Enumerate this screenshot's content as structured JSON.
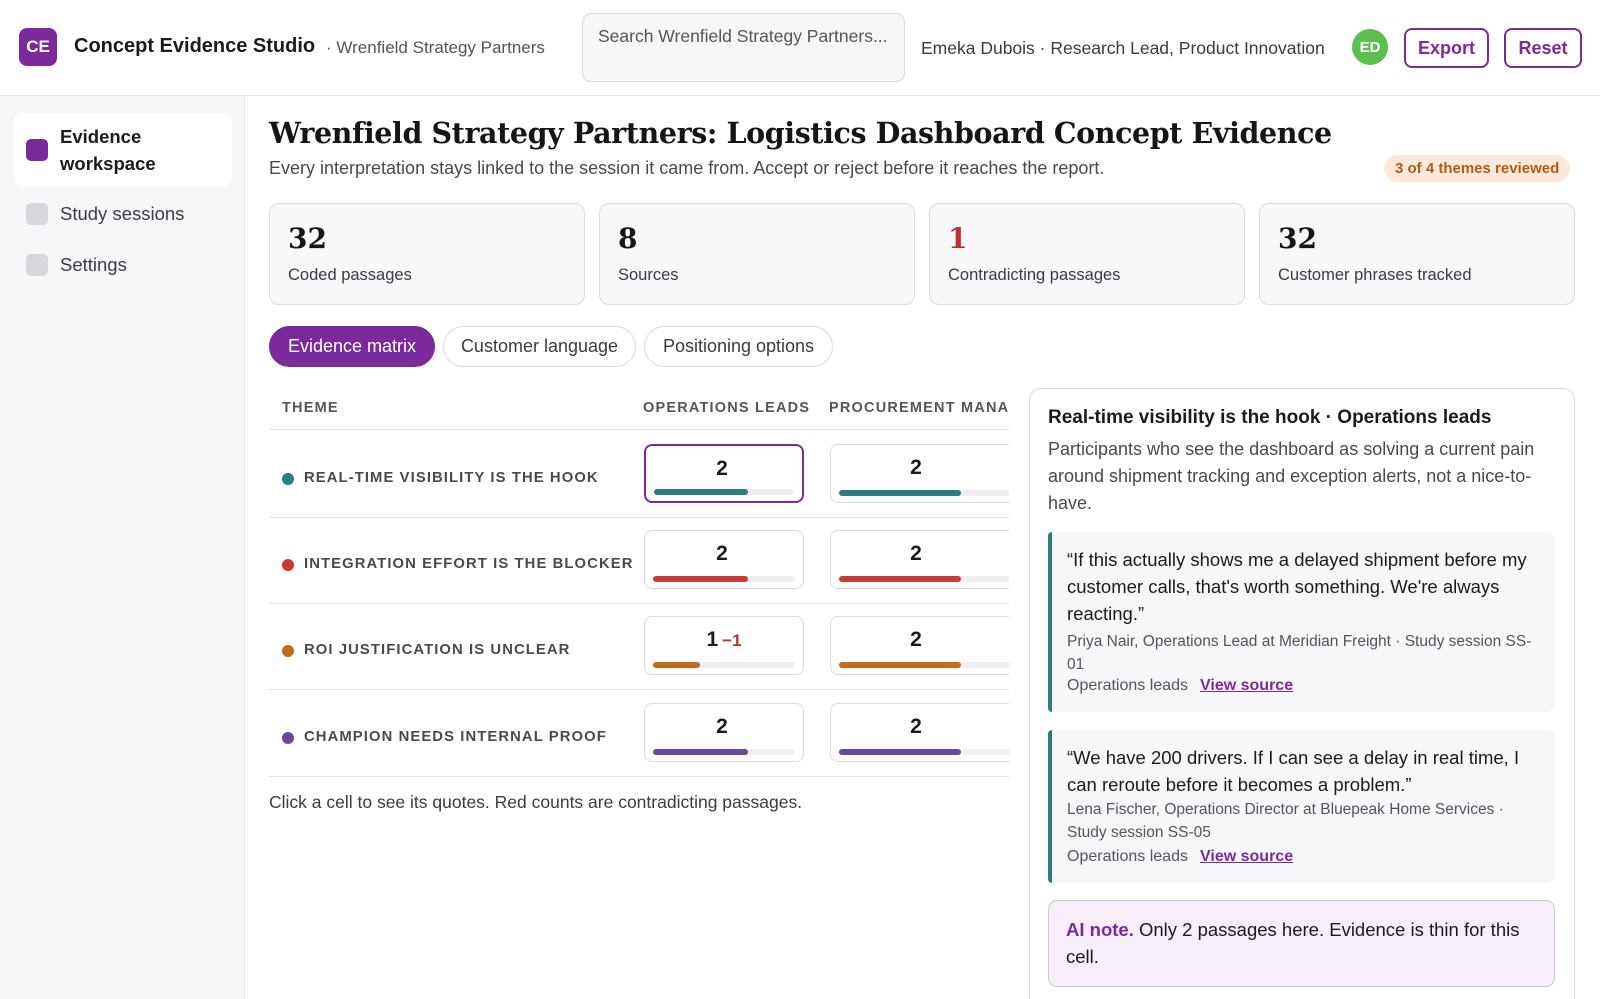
{
  "app": {
    "logo_initials": "CE",
    "title": "Concept Evidence Studio",
    "org_crumb": "· Wrenfield Strategy Partners"
  },
  "search": {
    "placeholder": "Search Wrenfield Strategy Partners..."
  },
  "user": {
    "line": "Emeka Dubois · Research Lead, Product Innovation",
    "initials": "ED",
    "avatar_color": "#5bc04e"
  },
  "actions": {
    "export_label": "Export",
    "reset_label": "Reset"
  },
  "sidebar": {
    "items": [
      {
        "label": "Evidence workspace",
        "active": true
      },
      {
        "label": "Study sessions",
        "active": false
      },
      {
        "label": "Settings",
        "active": false
      }
    ]
  },
  "page": {
    "title": "Wrenfield Strategy Partners: Logistics Dashboard Concept Evidence",
    "subtitle": "Every interpretation stays linked to the session it came from. Accept or reject before it reaches the report.",
    "review_badge": "3 of 4 themes reviewed"
  },
  "stats": [
    {
      "value": "32",
      "label": "Coded passages",
      "highlight": false
    },
    {
      "value": "8",
      "label": "Sources",
      "highlight": false
    },
    {
      "value": "1",
      "label": "Contradicting passages",
      "highlight": true
    },
    {
      "value": "32",
      "label": "Customer phrases tracked",
      "highlight": false
    }
  ],
  "tabs": [
    {
      "label": "Evidence matrix",
      "active": true
    },
    {
      "label": "Customer language",
      "active": false
    },
    {
      "label": "Positioning options",
      "active": false
    }
  ],
  "matrix": {
    "columns": [
      "THEME",
      "OPERATIONS LEADS",
      "PROCUREMENT MANA"
    ],
    "rows": [
      {
        "theme": "REAL-TIME VISIBILITY IS THE HOOK",
        "color": "#2e7d7d",
        "cells": [
          {
            "count": "2",
            "contra": "",
            "fill": 0.67
          },
          {
            "count": "2",
            "contra": "",
            "fill": 0.67
          }
        ]
      },
      {
        "theme": "INTEGRATION EFFORT IS THE BLOCKER",
        "color": "#c83a36",
        "cells": [
          {
            "count": "2",
            "contra": "",
            "fill": 0.67
          },
          {
            "count": "2",
            "contra": "",
            "fill": 0.67
          }
        ]
      },
      {
        "theme": "ROI JUSTIFICATION IS UNCLEAR",
        "color": "#c46b1c",
        "cells": [
          {
            "count": "1",
            "contra": "−1",
            "fill": 0.33
          },
          {
            "count": "2",
            "contra": "",
            "fill": 0.67
          }
        ]
      },
      {
        "theme": "CHAMPION NEEDS INTERNAL PROOF",
        "color": "#6b4a9e",
        "cells": [
          {
            "count": "2",
            "contra": "",
            "fill": 0.67
          },
          {
            "count": "2",
            "contra": "",
            "fill": 0.67
          }
        ]
      }
    ],
    "note": "Click a cell to see its quotes. Red counts are contradicting passages."
  },
  "panel": {
    "title": "Real-time visibility is the hook · Operations leads",
    "description": "Participants who see the dashboard as solving a current pain around shipment tracking and exception alerts, not a nice-to-have.",
    "quotes": [
      {
        "text": "“If this actually shows me a delayed shipment before my customer calls, that's worth something. We're always reacting.”",
        "attribution": "Priya Nair, Operations Lead at Meridian Freight · Study session SS-01",
        "segment": "Operations leads",
        "link": "View source"
      },
      {
        "text": "“We have 200 drivers. If I can see a delay in real time, I can reroute before it becomes a problem.”",
        "attribution": "Lena Fischer, Operations Director at Bluepeak Home Services · Study session SS-05",
        "segment": "Operations leads",
        "link": "View source"
      }
    ],
    "ai_note_label": "AI note.",
    "ai_note_text": " Only 2 passages here. Evidence is thin for this cell."
  }
}
